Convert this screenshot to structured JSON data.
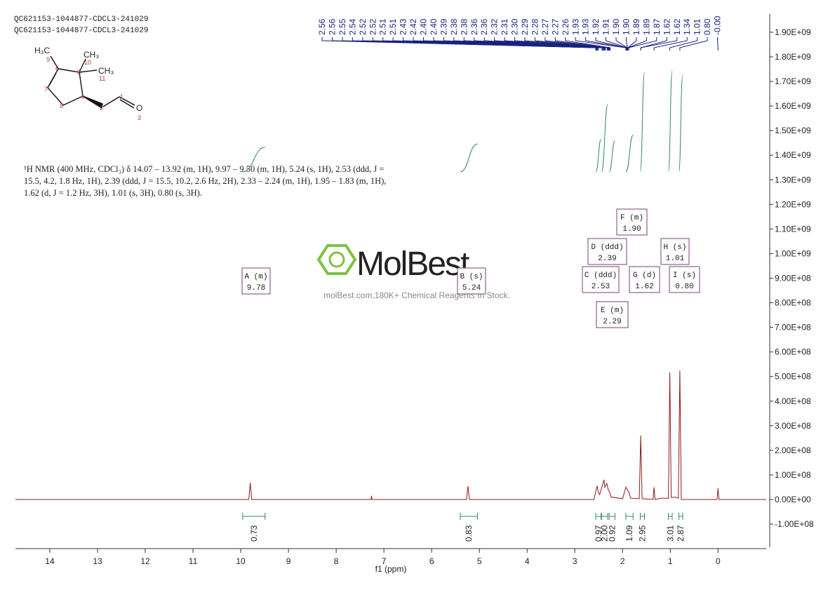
{
  "header": {
    "lines": [
      "QC621153-1044877-CDCL3-241029",
      "QC621153-1044877-CDCL3-241029"
    ]
  },
  "structure": {
    "atoms": [
      "H₃C",
      "CH₃",
      "CH₃",
      "O"
    ],
    "numbers": [
      "9",
      "10",
      "6",
      "5",
      "11",
      "7",
      "4",
      "1",
      "8",
      "2",
      "3"
    ]
  },
  "description": [
    "¹H NMR (400 MHz, CDCl₃) δ 14.07 – 13.92 (m, 1H), 9.97 – 9.50 (m, 1H), 5.24 (s, 1H), 2.53 (ddd, J =",
    "15.5, 4.2, 1.8 Hz, 1H), 2.39 (ddd, J = 15.5, 10.2, 2.6 Hz, 2H), 2.33 – 2.24 (m, 1H), 1.95 – 1.83 (m, 1H),",
    "1.62 (d, J = 1.2 Hz, 3H), 1.01 (s, 3H), 0.80 (s, 3H)."
  ],
  "watermark": {
    "brand": "MolBest",
    "tagline": "molBest.com,180K+ Chemical Reagents In Stock."
  },
  "peak_labels": [
    "2.56",
    "2.56",
    "2.55",
    "2.54",
    "2.52",
    "2.52",
    "2.51",
    "2.51",
    "2.43",
    "2.42",
    "2.40",
    "2.40",
    "2.39",
    "2.38",
    "2.38",
    "2.36",
    "2.36",
    "2.32",
    "2.31",
    "2.30",
    "2.29",
    "2.28",
    "2.27",
    "2.27",
    "2.26",
    "1.93",
    "1.93",
    "1.92",
    "1.91",
    "1.90",
    "1.90",
    "1.89",
    "1.89",
    "1.87",
    "1.62",
    "1.62",
    "1.34",
    "1.01",
    "0.80",
    "-0.00"
  ],
  "multiplets": [
    {
      "name": "A (m)",
      "shift": "9.78"
    },
    {
      "name": "B (s)",
      "shift": "5.24"
    },
    {
      "name": "C (ddd)",
      "shift": "2.53"
    },
    {
      "name": "D (ddd)",
      "shift": "2.39"
    },
    {
      "name": "E (m)",
      "shift": "2.29"
    },
    {
      "name": "F (m)",
      "shift": "1.90"
    },
    {
      "name": "G (d)",
      "shift": "1.62"
    },
    {
      "name": "H (s)",
      "shift": "1.01"
    },
    {
      "name": "I (s)",
      "shift": "0.80"
    }
  ],
  "chart_data": {
    "type": "line",
    "x_label": "f1 (ppm)",
    "color": "#8b1a1a",
    "x": [
      14.72,
      9.83,
      9.8,
      9.77,
      7.27,
      7.26,
      7.25,
      5.27,
      5.24,
      5.21,
      2.6,
      2.56,
      2.53,
      2.51,
      2.48,
      2.42,
      2.39,
      2.37,
      2.33,
      2.3,
      2.27,
      2.24,
      2.0,
      1.93,
      1.9,
      1.87,
      1.83,
      1.65,
      1.62,
      1.59,
      1.36,
      1.34,
      1.32,
      1.2,
      1.04,
      1.01,
      0.98,
      0.9,
      0.83,
      0.8,
      0.77,
      0.02,
      0.0,
      -0.02,
      -1.01
    ],
    "values": [
      0,
      0,
      68000000,
      0,
      0,
      15000000,
      0,
      0,
      54000000,
      0,
      0,
      35000000,
      55000000,
      30000000,
      20000000,
      60000000,
      80000000,
      50000000,
      65000000,
      40000000,
      30000000,
      10000000,
      3000000,
      50000000,
      40000000,
      30000000,
      5000000,
      3000000,
      260000000,
      3000000,
      0,
      50000000,
      0,
      5000000,
      5000000,
      517000000,
      8000000,
      10000000,
      5000000,
      525000000,
      0,
      0,
      45000000,
      0,
      0
    ],
    "xlim": [
      14.72,
      -1.01
    ],
    "xticks": [
      14,
      13,
      12,
      11,
      10,
      9,
      8,
      7,
      6,
      5,
      4,
      3,
      2,
      1,
      0
    ],
    "ylim": [
      -194000000,
      1974000000
    ],
    "yticks": [
      {
        "value": -100000000,
        "label": "-1.00E+08"
      },
      {
        "value": 0,
        "label": "0.00E+00"
      },
      {
        "value": 100000000,
        "label": "1.00E+08"
      },
      {
        "value": 200000000,
        "label": "2.00E+08"
      },
      {
        "value": 300000000,
        "label": "3.00E+08"
      },
      {
        "value": 400000000,
        "label": "4.00E+08"
      },
      {
        "value": 500000000,
        "label": "5.00E+08"
      },
      {
        "value": 600000000,
        "label": "6.00E+08"
      },
      {
        "value": 700000000,
        "label": "7.00E+08"
      },
      {
        "value": 800000000,
        "label": "8.00E+08"
      },
      {
        "value": 900000000,
        "label": "9.00E+08"
      },
      {
        "value": 1000000000,
        "label": "1.00E+09"
      },
      {
        "value": 1100000000,
        "label": "1.10E+09"
      },
      {
        "value": 1200000000,
        "label": "1.20E+09"
      },
      {
        "value": 1300000000,
        "label": "1.30E+09"
      },
      {
        "value": 1400000000,
        "label": "1.40E+09"
      },
      {
        "value": 1500000000,
        "label": "1.50E+09"
      },
      {
        "value": 1600000000,
        "label": "1.60E+09"
      },
      {
        "value": 1700000000,
        "label": "1.70E+09"
      },
      {
        "value": 1800000000,
        "label": "1.80E+09"
      },
      {
        "value": 1900000000,
        "label": "1.90E+09"
      }
    ],
    "integrals": {
      "values": [
        0.73,
        0.83,
        0.97,
        2,
        0.92,
        1.09,
        2.95,
        3.01,
        2.87
      ],
      "value_labels": [
        "0.73",
        "0.83",
        "0.97",
        "2.00",
        "0.92",
        "1.09",
        "2.95",
        "3.01",
        "2.87"
      ],
      "ranges": [
        [
          9.96,
          9.49
        ],
        [
          5.4,
          5.04
        ],
        [
          2.56,
          2.45
        ],
        [
          2.44,
          2.31
        ],
        [
          2.28,
          2.16
        ],
        [
          1.93,
          1.78
        ],
        [
          1.63,
          1.54
        ],
        [
          1.04,
          0.96
        ],
        [
          0.82,
          0.74
        ]
      ]
    }
  }
}
